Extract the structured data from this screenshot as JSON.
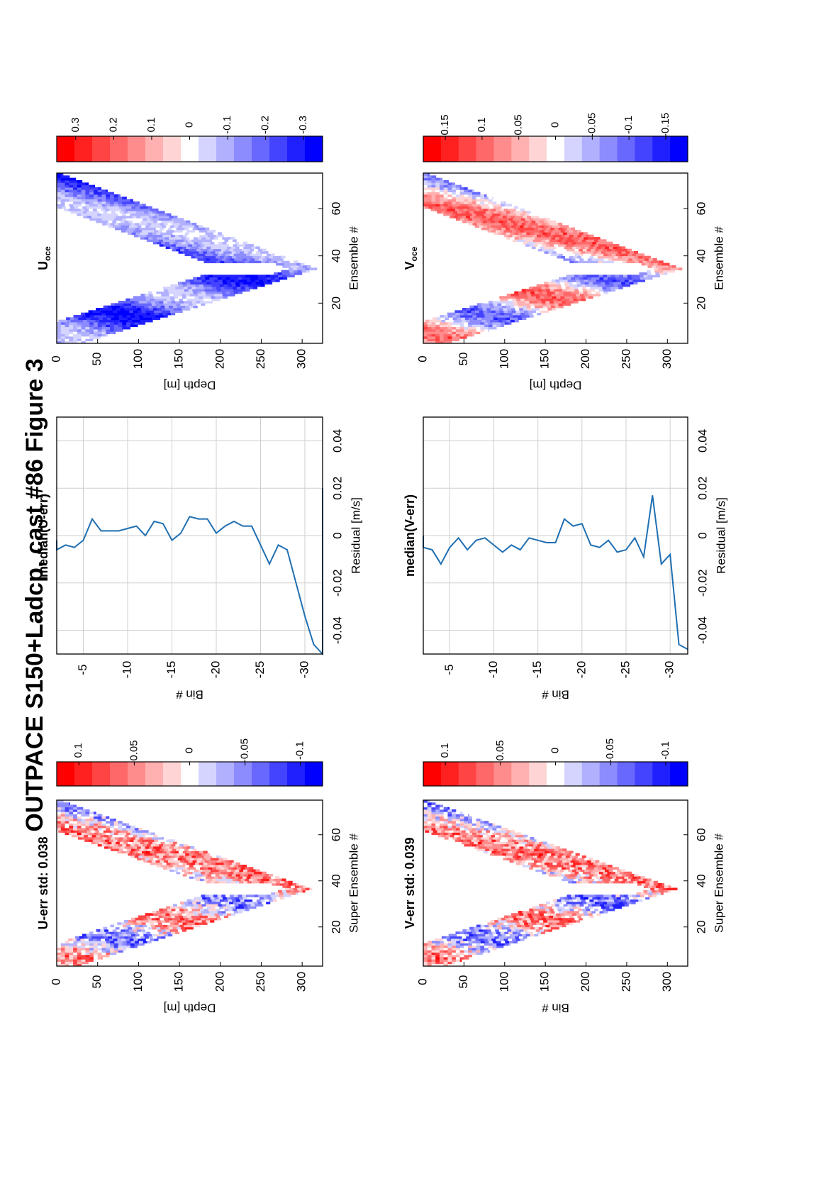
{
  "figure": {
    "title": "OUTPACE S150+Ladcp, cast #86  Figure 3"
  },
  "palette": {
    "red": "#ff1a1a",
    "white": "#ffffff",
    "blue": "#1a1aff",
    "line": "#1f6fb2",
    "grid": "#cfcfcf",
    "levels": [
      "#ff0000",
      "#ff2020",
      "#ff4444",
      "#ff6868",
      "#ff8c8c",
      "#ffb0b0",
      "#ffd4d4",
      "#ffffff",
      "#d4d4ff",
      "#b0b0ff",
      "#8c8cff",
      "#6868ff",
      "#4444ff",
      "#2020ff",
      "#0000ff"
    ]
  },
  "chart_data": [
    {
      "type": "heatmap",
      "id": "u-err",
      "title": "U-err std: 0.038",
      "xlabel": "Super Ensemble #",
      "ylabel": "Depth [m]",
      "xlim": [
        3,
        75
      ],
      "ylim": [
        0,
        325
      ],
      "xticks": [
        "20",
        "40",
        "60"
      ],
      "xtick_values": [
        20,
        40,
        60
      ],
      "yticks": [
        "0",
        "50",
        "100",
        "150",
        "200",
        "250",
        "300"
      ],
      "ytick_values": [
        0,
        50,
        100,
        150,
        200,
        250,
        300
      ],
      "colorbar": {
        "range": [
          -0.12,
          0.12
        ],
        "ticks": [
          "0.1",
          "0.05",
          "0",
          "-0.05",
          "-0.1"
        ],
        "tick_values": [
          0.1,
          0.05,
          0,
          -0.05,
          -0.1
        ]
      },
      "band": {
        "x_start": 3,
        "x_apex": 36,
        "x_end": 75,
        "y_apex": 312,
        "depth_start": 30,
        "depth_end": 0,
        "thickness": 110
      },
      "pattern": {
        "amplitude": 0.06,
        "bias": 0.0,
        "noise": 0.9,
        "seed": 11
      }
    },
    {
      "type": "line",
      "id": "median-u",
      "title": "median(U-err)",
      "xlabel": "Residual [m/s]",
      "ylabel": "Bin #",
      "xlim": [
        -0.05,
        0.05
      ],
      "ylim": [
        -2,
        -32
      ],
      "xticks": [
        "-0.04",
        "-0.02",
        "0",
        "0.02",
        "0.04"
      ],
      "xtick_values": [
        -0.04,
        -0.02,
        0,
        0.02,
        0.04
      ],
      "yticks": [
        "-5",
        "-10",
        "-15",
        "-20",
        "-25",
        "-30"
      ],
      "ytick_values": [
        -5,
        -10,
        -15,
        -20,
        -25,
        -30
      ],
      "grid": true,
      "series": [
        {
          "x": [
            -0.002,
            -0.006,
            -0.004,
            -0.005,
            -0.002,
            0.007,
            0.002,
            0.002,
            0.002,
            0.003,
            0.004,
            0.0,
            0.006,
            0.005,
            -0.002,
            0.001,
            0.008,
            0.007,
            0.007,
            0.001,
            0.004,
            0.006,
            0.004,
            0.004,
            -0.004,
            -0.012,
            -0.004,
            -0.006,
            -0.02,
            -0.034,
            -0.046,
            -0.05,
            0.02
          ],
          "y": [
            -1,
            -2,
            -3,
            -4,
            -5,
            -6,
            -7,
            -8,
            -9,
            -10,
            -11,
            -12,
            -13,
            -14,
            -15,
            -16,
            -17,
            -18,
            -19,
            -20,
            -21,
            -22,
            -23,
            -24,
            -25,
            -26,
            -27,
            -28,
            -29,
            -30,
            -31,
            -32,
            -32
          ]
        }
      ]
    },
    {
      "type": "heatmap",
      "id": "u-oce",
      "title": "U",
      "title_sub": "oce",
      "xlabel": "Ensemble #",
      "ylabel": "Depth [m]",
      "xlim": [
        3,
        75
      ],
      "ylim": [
        0,
        325
      ],
      "xticks": [
        "20",
        "40",
        "60"
      ],
      "xtick_values": [
        20,
        40,
        60
      ],
      "yticks": [
        "0",
        "50",
        "100",
        "150",
        "200",
        "250",
        "300"
      ],
      "ytick_values": [
        0,
        50,
        100,
        150,
        200,
        250,
        300
      ],
      "colorbar": {
        "range": [
          -0.35,
          0.35
        ],
        "ticks": [
          "0.3",
          "0.2",
          "0.1",
          "0",
          "-0.1",
          "-0.2",
          "-0.3"
        ],
        "tick_values": [
          0.3,
          0.2,
          0.1,
          0,
          -0.1,
          -0.2,
          -0.3
        ]
      },
      "band": {
        "x_start": 3,
        "x_apex": 34,
        "x_end": 75,
        "y_apex": 318,
        "depth_start": 35,
        "depth_end": 0,
        "thickness": 115
      },
      "pattern": {
        "amplitude": 0.14,
        "bias": -0.19,
        "noise": 0.35,
        "seed": 23
      }
    },
    {
      "type": "heatmap",
      "id": "v-err",
      "title": "V-err std: 0.039",
      "xlabel": "Super Ensemble #",
      "ylabel": "Bin #",
      "xlim": [
        3,
        75
      ],
      "ylim": [
        0,
        325
      ],
      "xticks": [
        "20",
        "40",
        "60"
      ],
      "xtick_values": [
        20,
        40,
        60
      ],
      "yticks": [
        "0",
        "50",
        "100",
        "150",
        "200",
        "250",
        "300"
      ],
      "ytick_values": [
        0,
        50,
        100,
        150,
        200,
        250,
        300
      ],
      "colorbar": {
        "range": [
          -0.12,
          0.12
        ],
        "ticks": [
          "0.1",
          "0.05",
          "0",
          "-0.05",
          "-0.1"
        ],
        "tick_values": [
          0.1,
          0.05,
          0,
          -0.05,
          -0.1
        ]
      },
      "band": {
        "x_start": 3,
        "x_apex": 36,
        "x_end": 75,
        "y_apex": 312,
        "depth_start": 30,
        "depth_end": 0,
        "thickness": 110
      },
      "pattern": {
        "amplitude": 0.06,
        "bias": 0.0,
        "noise": 0.9,
        "seed": 37
      }
    },
    {
      "type": "line",
      "id": "median-v",
      "title": "median(V-err)",
      "xlabel": "Residual [m/s]",
      "ylabel": "Bin #",
      "xlim": [
        -0.05,
        0.05
      ],
      "ylim": [
        -2,
        -32
      ],
      "xticks": [
        "-0.04",
        "-0.02",
        "0",
        "0.02",
        "0.04"
      ],
      "xtick_values": [
        -0.04,
        -0.02,
        0,
        0.02,
        0.04
      ],
      "yticks": [
        "-5",
        "-10",
        "-15",
        "-20",
        "-25",
        "-30"
      ],
      "ytick_values": [
        -5,
        -10,
        -15,
        -20,
        -25,
        -30
      ],
      "grid": true,
      "series": [
        {
          "x": [
            0.0,
            -0.005,
            -0.006,
            -0.012,
            -0.005,
            -0.001,
            -0.006,
            -0.002,
            -0.001,
            -0.004,
            -0.007,
            -0.004,
            -0.006,
            -0.001,
            -0.002,
            -0.003,
            -0.003,
            0.007,
            0.004,
            0.005,
            -0.004,
            -0.005,
            -0.002,
            -0.007,
            -0.006,
            -0.001,
            -0.009,
            0.017,
            -0.012,
            -0.008,
            -0.046,
            -0.048
          ],
          "y": [
            -1,
            -2,
            -3,
            -4,
            -5,
            -6,
            -7,
            -8,
            -9,
            -10,
            -11,
            -12,
            -13,
            -14,
            -15,
            -16,
            -17,
            -18,
            -19,
            -20,
            -21,
            -22,
            -23,
            -24,
            -25,
            -26,
            -27,
            -28,
            -29,
            -30,
            -31,
            -32
          ]
        }
      ]
    },
    {
      "type": "heatmap",
      "id": "v-oce",
      "title": "V",
      "title_sub": "oce",
      "xlabel": "Ensemble #",
      "ylabel": "Depth [m]",
      "xlim": [
        3,
        75
      ],
      "ylim": [
        0,
        325
      ],
      "xticks": [
        "20",
        "40",
        "60"
      ],
      "xtick_values": [
        20,
        40,
        60
      ],
      "yticks": [
        "0",
        "50",
        "100",
        "150",
        "200",
        "250",
        "300"
      ],
      "ytick_values": [
        0,
        50,
        100,
        150,
        200,
        250,
        300
      ],
      "colorbar": {
        "range": [
          -0.18,
          0.18
        ],
        "ticks": [
          "0.15",
          "0.1",
          "0.05",
          "0",
          "-0.05",
          "-0.1",
          "-0.15"
        ],
        "tick_values": [
          0.15,
          0.1,
          0.05,
          0,
          -0.05,
          -0.1,
          -0.15
        ]
      },
      "band": {
        "x_start": 3,
        "x_apex": 34,
        "x_end": 75,
        "y_apex": 318,
        "depth_start": 35,
        "depth_end": 0,
        "thickness": 115
      },
      "pattern": {
        "amplitude": 0.11,
        "bias": 0.0,
        "noise": 0.45,
        "seed": 53
      }
    }
  ]
}
